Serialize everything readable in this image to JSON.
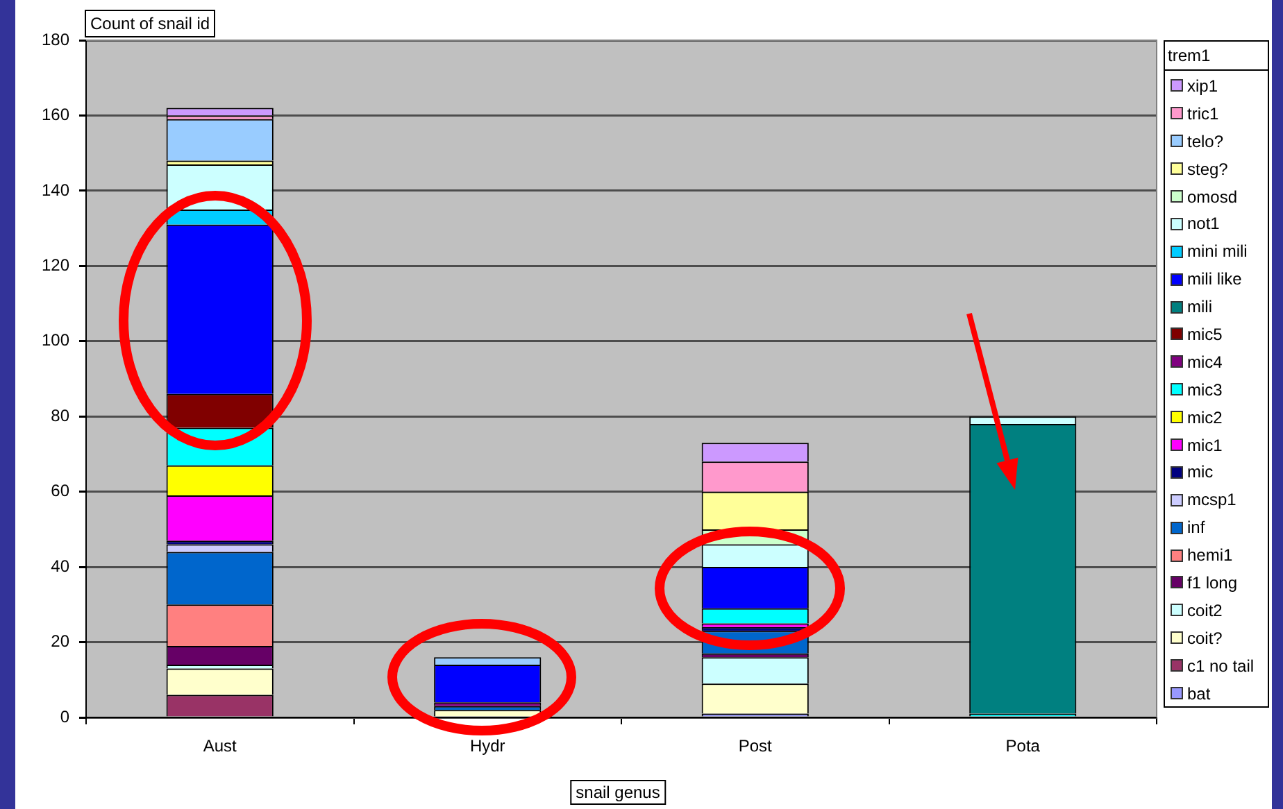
{
  "chart_data": {
    "type": "bar",
    "ylabel": "Count of snail id",
    "xlabel": "snail genus",
    "legend_title": "trem1",
    "categories": [
      "Aust",
      "Hydr",
      "Post",
      "Pota"
    ],
    "stacked": true,
    "ylim": [
      0,
      180
    ],
    "yticks": [
      0,
      20,
      40,
      60,
      80,
      100,
      120,
      140,
      160,
      180
    ],
    "grid": "y",
    "legend": "right",
    "series": [
      {
        "name": "bat",
        "color": "#9999ff",
        "values": [
          null,
          null,
          1,
          null
        ]
      },
      {
        "name": "c1 no tail",
        "color": "#993366",
        "values": [
          6,
          null,
          null,
          null
        ]
      },
      {
        "name": "coit?",
        "color": "#ffffcc",
        "values": [
          7,
          2,
          8,
          null
        ]
      },
      {
        "name": "coit2",
        "color": "#ccffff",
        "values": [
          1,
          null,
          7,
          null
        ]
      },
      {
        "name": "f1 long",
        "color": "#660066",
        "values": [
          5,
          null,
          1,
          null
        ]
      },
      {
        "name": "hemi1",
        "color": "#ff8080",
        "values": [
          11,
          null,
          null,
          null
        ]
      },
      {
        "name": "inf",
        "color": "#0066cc",
        "values": [
          14,
          1,
          6,
          null
        ]
      },
      {
        "name": "mcsp1",
        "color": "#ccccff",
        "values": [
          2,
          null,
          null,
          null
        ]
      },
      {
        "name": "mic",
        "color": "#000080",
        "values": [
          1,
          null,
          1,
          null
        ]
      },
      {
        "name": "mic1",
        "color": "#ff00ff",
        "values": [
          12,
          null,
          1,
          null
        ]
      },
      {
        "name": "mic2",
        "color": "#ffff00",
        "values": [
          8,
          null,
          null,
          null
        ]
      },
      {
        "name": "mic3",
        "color": "#00ffff",
        "values": [
          10,
          null,
          4,
          1
        ]
      },
      {
        "name": "mic4",
        "color": "#800080",
        "values": [
          null,
          1,
          null,
          null
        ]
      },
      {
        "name": "mic5",
        "color": "#800000",
        "values": [
          9,
          null,
          null,
          null
        ]
      },
      {
        "name": "mili",
        "color": "#008080",
        "values": [
          null,
          null,
          null,
          77
        ]
      },
      {
        "name": "mili like",
        "color": "#0000ff",
        "values": [
          45,
          10,
          11,
          null
        ]
      },
      {
        "name": "mini mili",
        "color": "#00ccff",
        "values": [
          4,
          null,
          null,
          null
        ]
      },
      {
        "name": "not1",
        "color": "#ccffff",
        "values": [
          12,
          null,
          6,
          2
        ]
      },
      {
        "name": "omosd",
        "color": "#ccffcc",
        "values": [
          null,
          null,
          4,
          null
        ]
      },
      {
        "name": "steg?",
        "color": "#ffff99",
        "values": [
          1,
          null,
          10,
          null
        ]
      },
      {
        "name": "telo?",
        "color": "#99ccff",
        "values": [
          11,
          2,
          null,
          null
        ]
      },
      {
        "name": "tric1",
        "color": "#ff99cc",
        "values": [
          1,
          null,
          8,
          null
        ]
      },
      {
        "name": "xip1",
        "color": "#cc99ff",
        "values": [
          2,
          null,
          5,
          null
        ]
      }
    ]
  }
}
